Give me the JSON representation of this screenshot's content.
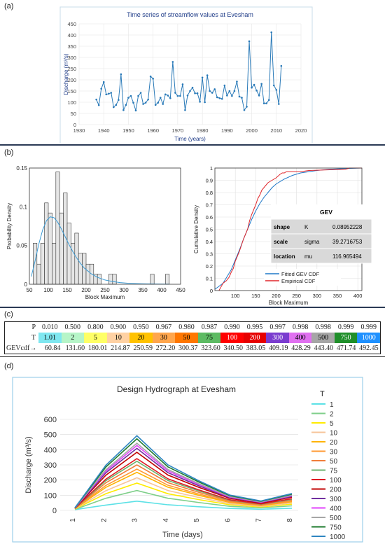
{
  "panel_labels": {
    "a": "(a)",
    "b": "(b)",
    "c": "(c)",
    "d": "(d)"
  },
  "chart_data": [
    {
      "type": "line",
      "title": "Time series of streamflow values at Evesham",
      "xlabel": "Time (years)",
      "ylabel": "Discharge (m³/s)",
      "xlim": [
        1930,
        2020
      ],
      "ylim": [
        0,
        450
      ],
      "xticks": [
        1930,
        1940,
        1950,
        1960,
        1970,
        1980,
        1990,
        2000,
        2010,
        2020
      ],
      "yticks": [
        0,
        50,
        100,
        150,
        200,
        250,
        300,
        350,
        400,
        450
      ],
      "grid": true,
      "color": "#2a7ab8",
      "x": [
        1937,
        1938,
        1939,
        1940,
        1941,
        1942,
        1943,
        1944,
        1945,
        1946,
        1947,
        1948,
        1949,
        1950,
        1951,
        1952,
        1953,
        1954,
        1955,
        1956,
        1957,
        1958,
        1959,
        1960,
        1961,
        1962,
        1963,
        1964,
        1965,
        1966,
        1967,
        1968,
        1969,
        1970,
        1971,
        1972,
        1973,
        1974,
        1975,
        1976,
        1977,
        1978,
        1979,
        1980,
        1981,
        1982,
        1983,
        1984,
        1985,
        1986,
        1987,
        1988,
        1989,
        1990,
        1991,
        1992,
        1993,
        1994,
        1995,
        1996,
        1997,
        1998,
        1999,
        2000,
        2001,
        2002,
        2003,
        2004,
        2005,
        2006,
        2007,
        2008,
        2009,
        2010,
        2011,
        2012
      ],
      "y": [
        112,
        87,
        160,
        190,
        135,
        138,
        142,
        78,
        88,
        110,
        225,
        65,
        88,
        120,
        128,
        98,
        63,
        128,
        142,
        92,
        98,
        112,
        215,
        205,
        88,
        98,
        120,
        92,
        135,
        130,
        118,
        280,
        142,
        128,
        128,
        180,
        65,
        130,
        150,
        165,
        140,
        140,
        102,
        210,
        100,
        220,
        150,
        142,
        158,
        122,
        118,
        115,
        175,
        130,
        150,
        128,
        150,
        192,
        125,
        120,
        65,
        80,
        372,
        165,
        178,
        152,
        130,
        182,
        95,
        95,
        110,
        412,
        175,
        155,
        92,
        262
      ]
    },
    {
      "type": "bar",
      "xlabel": "Block Maximum",
      "ylabel": "Probability Density",
      "xlim": [
        50,
        450
      ],
      "ylim": [
        0,
        0.15
      ],
      "xticks": [
        50,
        100,
        150,
        200,
        250,
        300,
        350,
        400,
        450
      ],
      "yticks": [
        0,
        0.05,
        0.1,
        0.15
      ],
      "ytick_labels": [
        "0",
        "0.05",
        "0.1",
        "0.15"
      ],
      "bin_width": 10,
      "bins_start": [
        60,
        70,
        80,
        90,
        100,
        110,
        120,
        130,
        140,
        150,
        160,
        170,
        180,
        190,
        200,
        210,
        220,
        230,
        260,
        270,
        370,
        410
      ],
      "values": [
        0.053,
        0.026,
        0.053,
        0.105,
        0.092,
        0.053,
        0.145,
        0.092,
        0.118,
        0.079,
        0.053,
        0.066,
        0.04,
        0.04,
        0.026,
        0.026,
        0.013,
        0.013,
        0.013,
        0.013,
        0.013,
        0.013
      ],
      "fit_color": "#3a9bd5",
      "fit_x": [
        55,
        65,
        75,
        85,
        95,
        105,
        115,
        125,
        135,
        145,
        155,
        165,
        175,
        185,
        195,
        205,
        215,
        230,
        250,
        270,
        290,
        310,
        330,
        350,
        380,
        420
      ],
      "fit_y": [
        0.01,
        0.03,
        0.052,
        0.07,
        0.082,
        0.087,
        0.086,
        0.08,
        0.071,
        0.061,
        0.051,
        0.042,
        0.034,
        0.027,
        0.021,
        0.017,
        0.013,
        0.009,
        0.0055,
        0.0035,
        0.0022,
        0.0014,
        0.0009,
        0.0006,
        0.0003,
        0.0001
      ]
    },
    {
      "type": "line",
      "xlabel": "Block Maximum",
      "ylabel": "Cumulative Density",
      "xlim": [
        50,
        410
      ],
      "ylim": [
        0,
        1
      ],
      "xticks": [
        100,
        150,
        200,
        250,
        300,
        350,
        400
      ],
      "yticks": [
        0,
        0.1,
        0.2,
        0.3,
        0.4,
        0.5,
        0.6,
        0.7,
        0.8,
        0.9,
        1
      ],
      "ytick_labels": [
        "0",
        "0.1",
        "0.2",
        "0.3",
        "0.4",
        "0.5",
        "0.6",
        "0.7",
        "0.8",
        "0.9",
        "1"
      ],
      "grid": true,
      "series": [
        {
          "name": "Fitted GEV CDF",
          "color": "#1f78c8",
          "x": [
            50,
            70,
            90,
            100,
            110,
            120,
            130,
            140,
            150,
            160,
            170,
            180,
            190,
            200,
            220,
            240,
            260,
            280,
            300,
            330,
            360,
            410
          ],
          "y": [
            0.01,
            0.06,
            0.17,
            0.25,
            0.33,
            0.42,
            0.5,
            0.58,
            0.65,
            0.71,
            0.76,
            0.8,
            0.84,
            0.87,
            0.91,
            0.94,
            0.96,
            0.97,
            0.98,
            0.99,
            0.995,
            1.0
          ]
        },
        {
          "name": "Empirical CDF",
          "color": "#e0262b",
          "x": [
            60,
            65,
            70,
            78,
            85,
            90,
            95,
            100,
            105,
            110,
            115,
            120,
            125,
            130,
            135,
            140,
            145,
            150,
            155,
            160,
            165,
            175,
            180,
            190,
            200,
            210,
            215,
            220,
            225,
            260,
            280,
            370,
            380,
            410
          ],
          "y": [
            0.0,
            0.03,
            0.06,
            0.08,
            0.11,
            0.15,
            0.18,
            0.24,
            0.28,
            0.32,
            0.37,
            0.42,
            0.46,
            0.5,
            0.57,
            0.62,
            0.66,
            0.7,
            0.75,
            0.78,
            0.82,
            0.86,
            0.88,
            0.9,
            0.92,
            0.95,
            0.96,
            0.96,
            0.97,
            0.97,
            0.98,
            0.99,
            1.0,
            1.0
          ]
        }
      ],
      "legend_position": "bottom-right",
      "param_table": {
        "header": "GEV",
        "rows": [
          {
            "name": "shape",
            "symbol": "K",
            "value": "0.08952228"
          },
          {
            "name": "scale",
            "symbol": "sigma",
            "value": "39.2716753"
          },
          {
            "name": "location",
            "symbol": "mu",
            "value": "116.965494"
          }
        ]
      }
    },
    {
      "type": "table",
      "row_labels": [
        "P",
        "T",
        "GEVcdf→"
      ],
      "P": [
        "0.010",
        "0.500",
        "0.800",
        "0.900",
        "0.950",
        "0.967",
        "0.980",
        "0.987",
        "0.990",
        "0.995",
        "0.997",
        "0.998",
        "0.998",
        "0.999",
        "0.999"
      ],
      "T": [
        "1.01",
        "2",
        "5",
        "10",
        "20",
        "30",
        "50",
        "75",
        "100",
        "200",
        "300",
        "400",
        "500",
        "750",
        "1000"
      ],
      "GEVcdf": [
        "60.84",
        "131.60",
        "180.01",
        "214.87",
        "250.59",
        "272.20",
        "300.37",
        "323.60",
        "340.50",
        "383.05",
        "409.19",
        "428.29",
        "443.40",
        "471.74",
        "492.45"
      ],
      "T_colors": [
        "#7fe7f0",
        "#b6f5c8",
        "#ffff66",
        "#ffd1a3",
        "#ffc200",
        "#ffa64d",
        "#ff7700",
        "#5dbb63",
        "#ff0000",
        "#e60000",
        "#7a3ccf",
        "#e070f0",
        "#a6a6a6",
        "#1f8f2a",
        "#1e90ff"
      ],
      "T_text_colors": [
        "#000",
        "#000",
        "#000",
        "#000",
        "#000",
        "#000",
        "#000",
        "#000",
        "#fff",
        "#fff",
        "#fff",
        "#000",
        "#000",
        "#fff",
        "#fff"
      ]
    },
    {
      "type": "line",
      "title": "Design Hydrograph at Evesham",
      "xlabel": "Time (days)",
      "ylabel": "Discharge (m³/s)",
      "categories": [
        "1",
        "2",
        "3",
        "4",
        "5",
        "6",
        "7",
        "8"
      ],
      "ylim": [
        0,
        600
      ],
      "yticks": [
        0,
        100,
        200,
        300,
        400,
        500,
        600
      ],
      "legend_title": "T",
      "series": [
        {
          "name": "1",
          "color": "#5ce1e6",
          "values": [
            5,
            35,
            61,
            37,
            24,
            13,
            8,
            14
          ]
        },
        {
          "name": "2",
          "color": "#7fcf8a",
          "values": [
            7,
            80,
            131,
            80,
            52,
            27,
            17,
            30
          ]
        },
        {
          "name": "5",
          "color": "#ffeb00",
          "values": [
            9,
            110,
            180,
            110,
            71,
            37,
            23,
            41
          ]
        },
        {
          "name": "10",
          "color": "#f7c49a",
          "values": [
            10,
            130,
            215,
            131,
            85,
            44,
            27,
            49
          ]
        },
        {
          "name": "20",
          "color": "#ffb300",
          "values": [
            11,
            152,
            251,
            153,
            99,
            52,
            32,
            57
          ]
        },
        {
          "name": "30",
          "color": "#ff9a33",
          "values": [
            12,
            165,
            272,
            166,
            108,
            56,
            34,
            61
          ]
        },
        {
          "name": "50",
          "color": "#f07d3a",
          "values": [
            13,
            182,
            300,
            183,
            119,
            62,
            38,
            68
          ]
        },
        {
          "name": "75",
          "color": "#6cb36f",
          "values": [
            13,
            196,
            324,
            197,
            128,
            67,
            41,
            73
          ]
        },
        {
          "name": "100",
          "color": "#e01b24",
          "values": [
            14,
            206,
            341,
            208,
            135,
            70,
            43,
            77
          ]
        },
        {
          "name": "200",
          "color": "#c00000",
          "values": [
            15,
            232,
            383,
            233,
            152,
            79,
            48,
            87
          ]
        },
        {
          "name": "300",
          "color": "#7030a0",
          "values": [
            15,
            248,
            409,
            249,
            162,
            84,
            52,
            92
          ]
        },
        {
          "name": "400",
          "color": "#e040fb",
          "values": [
            16,
            259,
            428,
            261,
            170,
            88,
            54,
            97
          ]
        },
        {
          "name": "500",
          "color": "#a6a6a6",
          "values": [
            16,
            268,
            443,
            270,
            176,
            91,
            56,
            100
          ]
        },
        {
          "name": "750",
          "color": "#1e7b2e",
          "values": [
            17,
            286,
            472,
            287,
            187,
            97,
            60,
            107
          ]
        },
        {
          "name": "1000",
          "color": "#2e86c1",
          "values": [
            17,
            298,
            492,
            300,
            195,
            101,
            62,
            111
          ]
        }
      ]
    }
  ]
}
